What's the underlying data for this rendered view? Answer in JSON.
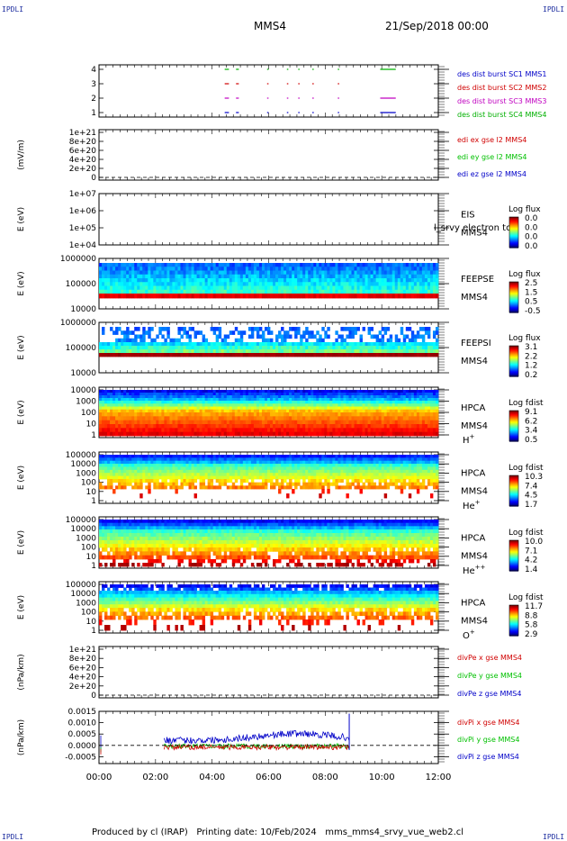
{
  "header": {
    "corner_left": "IPDLI",
    "corner_right": "IPDLI",
    "mission": "MMS4",
    "date": "21/Sep/2018 00:00"
  },
  "footer": {
    "produced_by": "Produced by cl (IRAP)",
    "printing_date": "Printing date: 10/Feb/2024",
    "file": "mms_mms4_srvy_vue_web2.cl"
  },
  "colors": {
    "mms1": "#0000c8",
    "mms2": "#d00000",
    "mms3": "#c000c0",
    "mms4": "#00b000",
    "x": "#d00000",
    "y": "#00c000",
    "z": "#0000c8"
  },
  "chart_data": [
    {
      "id": "burst",
      "type": "scatter",
      "ylabel": "",
      "ylim": [
        0.5,
        4.5
      ],
      "yticks": [
        "1",
        "2",
        "3",
        "4"
      ],
      "series": [
        {
          "name": "des dist burst SC1 MMS1",
          "level": 1,
          "color": "#0000c8",
          "x": [
            [
              4.0,
              4.15
            ],
            [
              4.4,
              4.5
            ],
            [
              5.5,
              5.55
            ],
            [
              6.2,
              6.25
            ],
            [
              6.6,
              6.65
            ],
            [
              7.1,
              7.15
            ],
            [
              8.0,
              8.05
            ],
            [
              9.5,
              10.05
            ]
          ]
        },
        {
          "name": "des dist burst SC2 MMS2",
          "level": 3,
          "color": "#d00000",
          "x": [
            [
              4.0,
              4.15
            ],
            [
              4.4,
              4.5
            ],
            [
              5.5,
              5.55
            ],
            [
              6.2,
              6.25
            ],
            [
              6.6,
              6.65
            ],
            [
              7.1,
              7.15
            ],
            [
              8.0,
              8.05
            ]
          ]
        },
        {
          "name": "des dist burst SC3 MMS3",
          "level": 2,
          "color": "#c000c0",
          "x": [
            [
              4.0,
              4.15
            ],
            [
              4.4,
              4.5
            ],
            [
              5.5,
              5.55
            ],
            [
              6.2,
              6.25
            ],
            [
              6.6,
              6.65
            ],
            [
              7.1,
              7.15
            ],
            [
              8.0,
              8.05
            ],
            [
              9.5,
              10.05
            ]
          ]
        },
        {
          "name": "des dist burst SC4 MMS4",
          "level": 4,
          "color": "#00b000",
          "x": [
            [
              4.0,
              4.15
            ],
            [
              4.4,
              4.5
            ],
            [
              5.5,
              5.55
            ],
            [
              6.2,
              6.25
            ],
            [
              6.6,
              6.65
            ],
            [
              7.1,
              7.15
            ],
            [
              8.0,
              8.05
            ],
            [
              9.5,
              10.05
            ]
          ]
        }
      ]
    },
    {
      "id": "edi",
      "type": "line",
      "ylabel": "(mV/m)",
      "yticks": [
        "1e+21",
        "8e+20",
        "6e+20",
        "4e+20",
        "2e+20",
        "0"
      ],
      "series": [
        {
          "name": "edi ex gse l2 MMS4",
          "color": "#d00000"
        },
        {
          "name": "edi ey gse l2 MMS4",
          "color": "#00c000"
        },
        {
          "name": "edi ez gse l2 MMS4",
          "color": "#0000c8"
        }
      ]
    },
    {
      "id": "eis",
      "type": "heatmap",
      "ylabel": "E (eV)",
      "yticks": [
        "1e+07",
        "1e+06",
        "1e+05",
        "1e+04"
      ],
      "label_instrument": "EIS",
      "label_sc": "MMS4",
      "overlay_text": "l_srvy electron to",
      "cbar_title": "Log flux",
      "cbar_ticks": [
        "0.0",
        "0.0",
        "0.0",
        "0.0"
      ]
    },
    {
      "id": "feepse",
      "type": "heatmap",
      "ylabel": "E (eV)",
      "yticks": [
        "1000000",
        "100000",
        "10000"
      ],
      "label_instrument": "FEEPSE",
      "label_sc": "MMS4",
      "cbar_title": "Log flux",
      "cbar_ticks": [
        "2.5",
        "1.5",
        "0.5",
        "-0.5"
      ]
    },
    {
      "id": "feepsi",
      "type": "heatmap",
      "ylabel": "E (eV)",
      "yticks": [
        "1000000",
        "100000",
        "10000"
      ],
      "label_instrument": "FEEPSI",
      "label_sc": "MMS4",
      "cbar_title": "Log flux",
      "cbar_ticks": [
        "3.1",
        "2.2",
        "1.2",
        "0.2"
      ]
    },
    {
      "id": "hpca_h",
      "type": "heatmap",
      "ylabel": "E (eV)",
      "yticks": [
        "10000",
        "1000",
        "100",
        "10",
        "1"
      ],
      "label_instrument": "HPCA",
      "label_sc": "MMS4",
      "species": "H",
      "species_charge": "+",
      "cbar_title": "Log fdist",
      "cbar_ticks": [
        "9.1",
        "6.2",
        "3.4",
        "0.5"
      ]
    },
    {
      "id": "hpca_he1",
      "type": "heatmap",
      "ylabel": "E (eV)",
      "yticks": [
        "100000",
        "10000",
        "1000",
        "100",
        "10",
        "1"
      ],
      "label_instrument": "HPCA",
      "label_sc": "MMS4",
      "species": "He",
      "species_charge": "+",
      "cbar_title": "Log fdist",
      "cbar_ticks": [
        "10.3",
        "7.4",
        "4.5",
        "1.7"
      ]
    },
    {
      "id": "hpca_he2",
      "type": "heatmap",
      "ylabel": "E (eV)",
      "yticks": [
        "100000",
        "10000",
        "1000",
        "100",
        "10",
        "1"
      ],
      "label_instrument": "HPCA",
      "label_sc": "MMS4",
      "species": "He",
      "species_charge": "++",
      "cbar_title": "Log fdist",
      "cbar_ticks": [
        "10.0",
        "7.1",
        "4.2",
        "1.4"
      ]
    },
    {
      "id": "hpca_o",
      "type": "heatmap",
      "ylabel": "E (eV)",
      "yticks": [
        "100000",
        "10000",
        "1000",
        "100",
        "10",
        "1"
      ],
      "label_instrument": "HPCA",
      "label_sc": "MMS4",
      "species": "O",
      "species_charge": "+",
      "cbar_title": "Log fdist",
      "cbar_ticks": [
        "11.7",
        "8.8",
        "5.8",
        "2.9"
      ]
    },
    {
      "id": "divpe",
      "type": "line",
      "ylabel": "(nPa/km)",
      "yticks": [
        "1e+21",
        "8e+20",
        "6e+20",
        "4e+20",
        "2e+20",
        "0"
      ],
      "series": [
        {
          "name": "divPe x gse MMS4",
          "color": "#d00000"
        },
        {
          "name": "divPe y gse MMS4",
          "color": "#00c000"
        },
        {
          "name": "divPe z gse MMS4",
          "color": "#0000c8"
        }
      ]
    },
    {
      "id": "divpi",
      "type": "line",
      "ylabel": "(nPa/km)",
      "ylim": [
        -0.0008,
        0.0015
      ],
      "yticks": [
        "0.0015",
        "0.0010",
        "0.0005",
        "0.0000",
        "-0.0005"
      ],
      "series": [
        {
          "name": "divPi x gse MMS4",
          "color": "#d00000",
          "level": -8e-05
        },
        {
          "name": "divPi y gse MMS4",
          "color": "#00c000",
          "level": -4e-05
        },
        {
          "name": "divPi z gse MMS4",
          "color": "#0000c8",
          "level": 0.00022
        }
      ],
      "x_range": [
        2.3,
        8.85
      ]
    }
  ],
  "xaxis": {
    "range": [
      0,
      12
    ],
    "ticks": [
      "00:00",
      "02:00",
      "04:00",
      "06:00",
      "08:00",
      "10:00",
      "12:00"
    ]
  }
}
